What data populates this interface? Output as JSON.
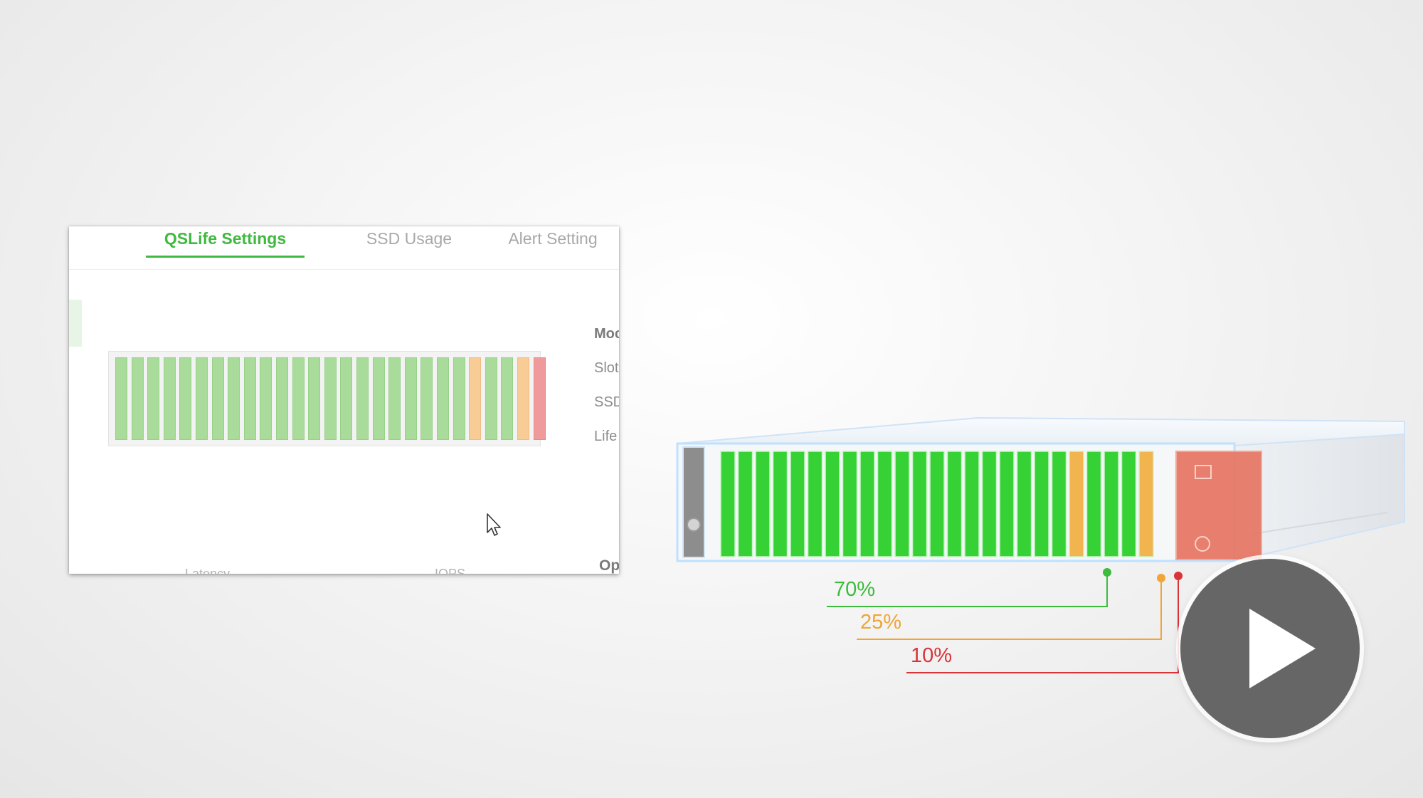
{
  "tabs": [
    {
      "label": "QSLife Settings",
      "active": true
    },
    {
      "label": "SSD Usage",
      "active": false
    },
    {
      "label": "Alert Setting",
      "active": false
    }
  ],
  "side_labels": {
    "model": "Moc",
    "slot": "Slot",
    "ssd": "SSD",
    "life": "Life"
  },
  "bottom_labels": {
    "latency": "Latency",
    "iops": "IOPS",
    "op": "Op"
  },
  "ssd_slots": [
    "green",
    "green",
    "green",
    "green",
    "green",
    "green",
    "green",
    "green",
    "green",
    "green",
    "green",
    "green",
    "green",
    "green",
    "green",
    "green",
    "green",
    "green",
    "green",
    "green",
    "green",
    "green",
    "orange",
    "green",
    "green",
    "orange",
    "red"
  ],
  "server_drives": [
    "green",
    "green",
    "green",
    "green",
    "green",
    "green",
    "green",
    "green",
    "green",
    "green",
    "green",
    "green",
    "green",
    "green",
    "green",
    "green",
    "green",
    "green",
    "green",
    "green",
    "orange",
    "green",
    "green",
    "green",
    "orange",
    "red"
  ],
  "life_thresholds": [
    {
      "label": "70%",
      "color": "#3dbb3d"
    },
    {
      "label": "25%",
      "color": "#f0a536"
    },
    {
      "label": "10%",
      "color": "#d9343a"
    }
  ],
  "colors": {
    "accent": "#3fb93f",
    "healthy": "#a9dc9a",
    "warning": "#f8cc95",
    "critical": "#ef9b9b"
  },
  "icons": {
    "cursor": "mouse-pointer-icon",
    "play": "play-icon"
  }
}
